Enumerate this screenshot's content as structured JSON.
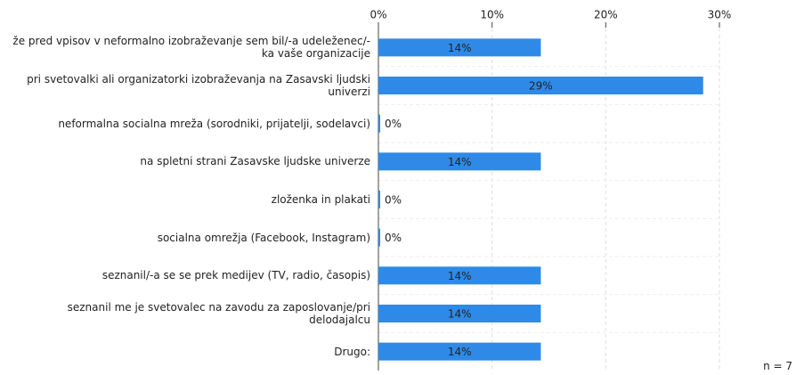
{
  "chart_data": {
    "type": "bar",
    "orientation": "horizontal",
    "categories": [
      "že pred vpisov v neformalno izobraževanje sem bil/-a udeleženec/-ka vaše organizacije",
      "pri svetovalki ali organizatorki izobraževanja na Zasavski ljudski univerzi",
      "neformalna socialna mreža (sorodniki, prijatelji, sodelavci)",
      "na spletni strani Zasavske ljudske univerze",
      "zloženka in plakati",
      "socialna omrežja (Facebook, Instagram)",
      "seznanil/-a se se prek medijev (TV, radio, časopis)",
      "seznanil me je svetovalec na zavodu za zaposlovanje/pri delodajalcu",
      "Drugo:"
    ],
    "values": [
      14.29,
      28.57,
      0,
      14.29,
      0,
      0,
      14.29,
      14.29,
      14.29
    ],
    "value_labels": [
      "14%",
      "29%",
      "0%",
      "14%",
      "0%",
      "0%",
      "14%",
      "14%",
      "14%"
    ],
    "color": "#2e8ae6",
    "xlim": [
      0,
      30
    ],
    "xticks": [
      {
        "value": 0,
        "label": "0%"
      },
      {
        "value": 10,
        "label": "10%"
      },
      {
        "value": 20,
        "label": "20%"
      },
      {
        "value": 30,
        "label": "30%"
      }
    ],
    "grid": true,
    "annotation": "n = 7"
  }
}
